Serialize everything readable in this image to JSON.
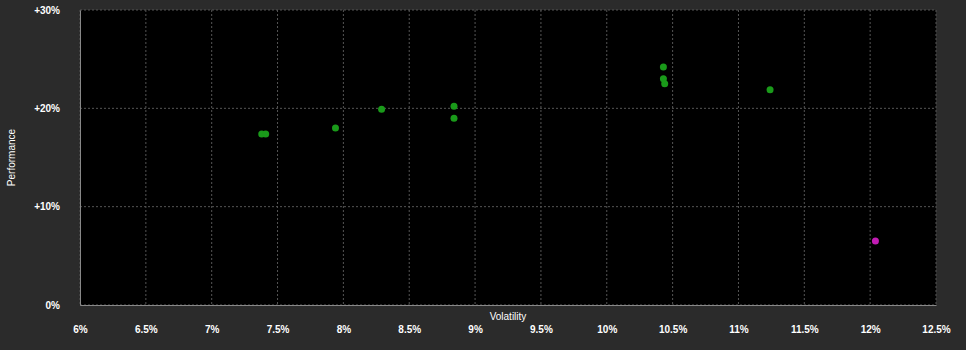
{
  "chart_data": {
    "type": "scatter",
    "x_label": "Volatility",
    "y_label": "Performance",
    "x": [
      7.38,
      7.41,
      7.94,
      8.29,
      8.84,
      8.84,
      10.43,
      10.43,
      10.44,
      11.24,
      12.04
    ],
    "values": [
      17.4,
      17.4,
      18.0,
      19.9,
      20.2,
      19.0,
      24.2,
      23.0,
      22.5,
      21.9,
      6.5
    ],
    "colors": [
      "#1a9a1a",
      "#1a9a1a",
      "#1a9a1a",
      "#1a9a1a",
      "#1a9a1a",
      "#1a9a1a",
      "#1a9a1a",
      "#1a9a1a",
      "#1a9a1a",
      "#1a9a1a",
      "#c21cb4"
    ],
    "marker": "circle",
    "xlim": [
      6,
      12.5
    ],
    "xticks": [
      {
        "value": 6,
        "label": "6%"
      },
      {
        "value": 6.5,
        "label": "6.5%"
      },
      {
        "value": 7,
        "label": "7%"
      },
      {
        "value": 7.5,
        "label": "7.5%"
      },
      {
        "value": 8,
        "label": "8%"
      },
      {
        "value": 8.5,
        "label": "8.5%"
      },
      {
        "value": 9,
        "label": "9%"
      },
      {
        "value": 9.5,
        "label": "9.5%"
      },
      {
        "value": 10,
        "label": "10%"
      },
      {
        "value": 10.5,
        "label": "10.5%"
      },
      {
        "value": 11,
        "label": "11%"
      },
      {
        "value": 11.5,
        "label": "11.5%"
      },
      {
        "value": 12,
        "label": "12%"
      },
      {
        "value": 12.5,
        "label": "12.5%"
      }
    ],
    "ylim": [
      0,
      30
    ],
    "yticks": [
      {
        "value": 0,
        "label": "0%"
      },
      {
        "value": 10,
        "label": "+10%"
      },
      {
        "value": 20,
        "label": "+20%"
      },
      {
        "value": 30,
        "label": "+30%"
      }
    ],
    "grid": true
  }
}
